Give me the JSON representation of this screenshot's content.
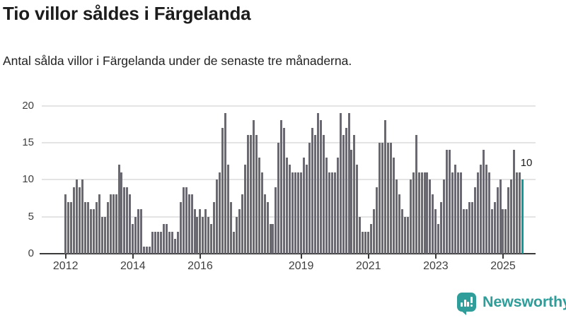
{
  "header": {
    "title": "Tio villor såldes i Färgelanda",
    "subtitle": "Antal sålda villor i Färgelanda under de senaste tre månaderna."
  },
  "chart_data": {
    "type": "bar",
    "title": "Tio villor såldes i Färgelanda",
    "x_start": "2012-01",
    "x_end": "2025-08",
    "values": [
      8,
      7,
      7,
      9,
      10,
      9,
      10,
      7,
      7,
      6,
      6,
      7,
      8,
      5,
      5,
      7,
      8,
      8,
      8,
      12,
      11,
      9,
      9,
      8,
      4,
      5,
      6,
      6,
      1,
      1,
      1,
      3,
      3,
      3,
      3,
      4,
      4,
      3,
      3,
      2,
      3,
      7,
      9,
      9,
      8,
      8,
      6,
      5,
      6,
      5,
      6,
      5,
      4,
      7,
      10,
      11,
      17,
      19,
      12,
      7,
      3,
      5,
      6,
      8,
      12,
      16,
      16,
      18,
      16,
      13,
      11,
      8,
      7,
      4,
      4,
      9,
      15,
      18,
      17,
      13,
      12,
      11,
      11,
      11,
      11,
      13,
      12,
      15,
      17,
      16,
      19,
      18,
      16,
      13,
      11,
      11,
      11,
      13,
      19,
      16,
      17,
      19,
      14,
      16,
      12,
      5,
      3,
      3,
      3,
      4,
      6,
      9,
      15,
      15,
      18,
      15,
      15,
      13,
      10,
      8,
      6,
      5,
      5,
      10,
      11,
      16,
      11,
      11,
      11,
      11,
      10,
      8,
      6,
      4,
      7,
      10,
      14,
      14,
      11,
      12,
      11,
      11,
      6,
      6,
      7,
      7,
      9,
      11,
      12,
      14,
      12,
      11,
      6,
      7,
      9,
      10,
      6,
      6,
      9,
      10,
      14,
      11,
      11,
      10
    ],
    "x_tick_labels": [
      "2012",
      "2014",
      "2016",
      "2019",
      "2021",
      "2023",
      "2025"
    ],
    "x_tick_month_indices": [
      0,
      24,
      48,
      84,
      108,
      132,
      156
    ],
    "y_ticks": [
      0,
      5,
      10,
      15,
      20
    ],
    "ylim": [
      0,
      20
    ],
    "grid": "horizontal",
    "legend": "none",
    "annotation": {
      "text": "10",
      "month_index": 163,
      "value": 10
    },
    "colors": {
      "bar": "#6a6972",
      "highlight": "#0f9a9c"
    },
    "highlight_last_bar": true
  },
  "logo": {
    "text": "Newsworthy",
    "color": "#2f9d99",
    "icon": "newsworthy-chart-bubble-icon"
  }
}
